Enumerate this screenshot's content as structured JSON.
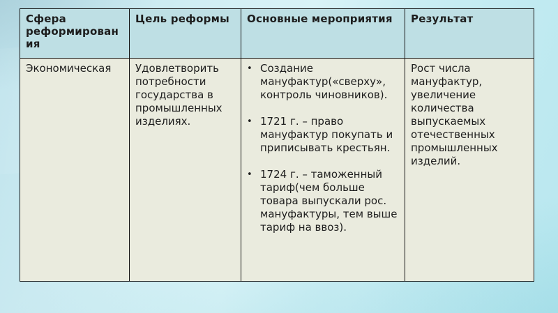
{
  "slide": {
    "kind": "presentation-slide",
    "colors": {
      "background_base": "#cdeef4",
      "header_cell_bg": "#bedfe4",
      "body_cell_bg": "#eaebde",
      "table_border": "#161616",
      "text": "#1d1d1d"
    },
    "bullet_glyph": "•",
    "table": {
      "headers": [
        "Сфера реформирования",
        "Цель реформы",
        "Основные мероприятия",
        "Результат"
      ],
      "rows": [
        {
          "sphere": "Экономическая",
          "goal": "Удовлетворить потребности государства в промышленных изделиях.",
          "activities": [
            "Создание мануфактур(«сверху», контроль чиновников).",
            "1721 г. – право мануфактур покупать и приписывать крестьян.",
            "1724 г. – таможенный тариф(чем больше товара выпускали рос. мануфактуры, тем выше тариф на ввоз)."
          ],
          "result": "Рост числа мануфактур, увеличение количества выпускаемых отечественных промышленных изделий."
        }
      ]
    }
  }
}
